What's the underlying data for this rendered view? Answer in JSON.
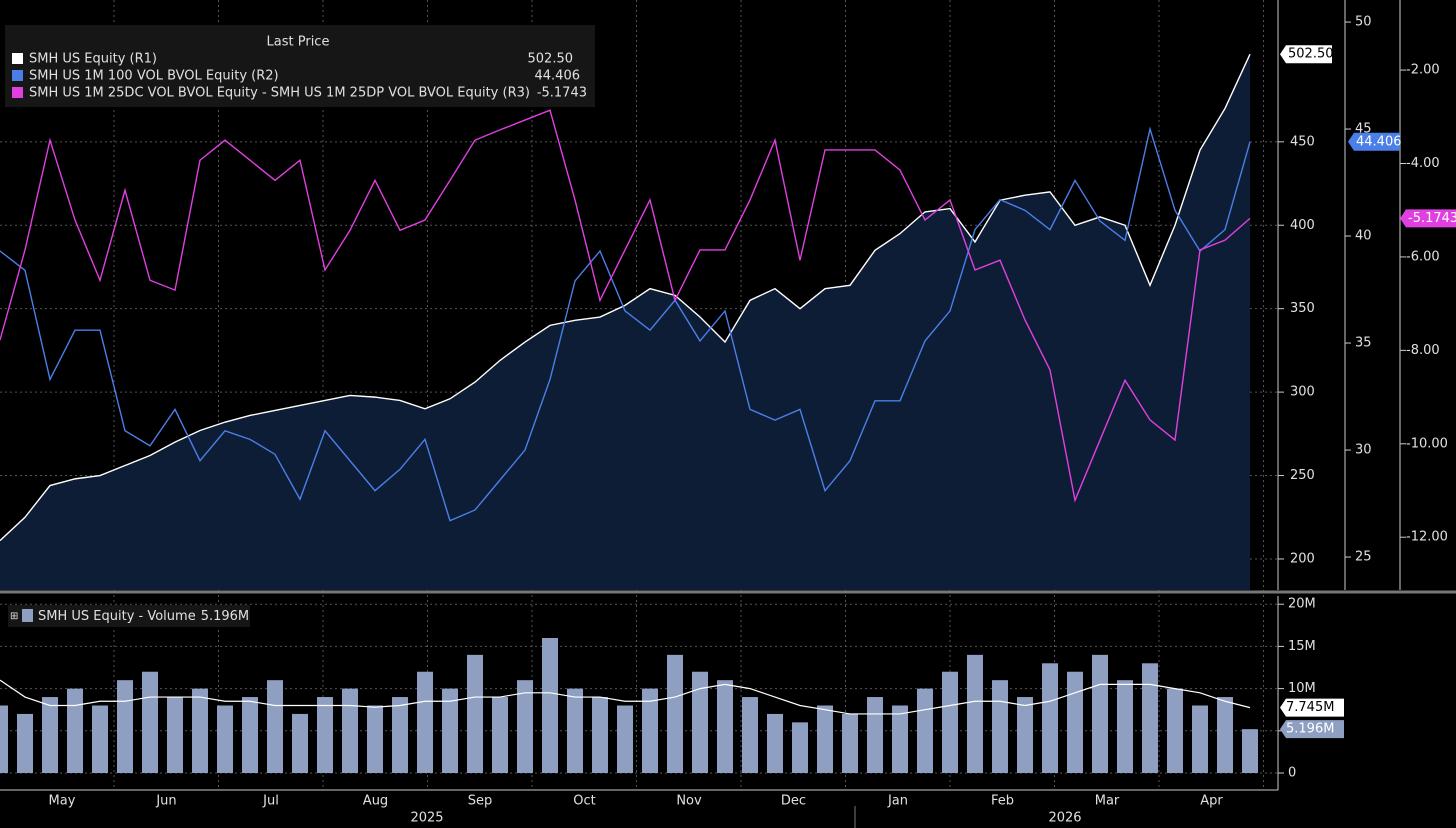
{
  "chart_data": [
    {
      "type": "line",
      "legend_title": "Last Price",
      "ylim": [
        181.4,
        535
      ],
      "yticks": [
        200,
        250,
        300,
        350,
        400,
        450
      ],
      "y2lim": [
        23.46,
        51.03
      ],
      "y2ticks": [
        25,
        30,
        35,
        40,
        45,
        50
      ],
      "y3lim": [
        -13.13,
        -0.5
      ],
      "y3ticks": [
        {
          "value": -12,
          "label": "-12.00"
        },
        {
          "value": -10,
          "label": "-10.00"
        },
        {
          "value": -8,
          "label": "-8.00"
        },
        {
          "value": -6,
          "label": "-6.00"
        },
        {
          "value": -4,
          "label": "-4.00"
        },
        {
          "value": -2,
          "label": "-2.00"
        }
      ],
      "grid": true,
      "series": [
        {
          "name": "SMH US Equity  (R1)",
          "axis": "y",
          "color": "#ffffff",
          "fill": "#0e1d36",
          "last_label": "502.50",
          "values": [
            211,
            225,
            244,
            248,
            250,
            256,
            262,
            270,
            277,
            282,
            286,
            289,
            292,
            295,
            298,
            297,
            295,
            290,
            296,
            306,
            319,
            330,
            340,
            343,
            345,
            352,
            362,
            358,
            345,
            330,
            355,
            362,
            350,
            362,
            364,
            385,
            395,
            408,
            410,
            390,
            415,
            418,
            420,
            400,
            405,
            400,
            364,
            400,
            445,
            470,
            502.5
          ]
        },
        {
          "name": "SMH US 1M 100 VOL BVOL Equity  (R2)",
          "axis": "y2",
          "color": "#4a7fe8",
          "last_label": "44.406",
          "values": [
            39.3,
            38.4,
            33.3,
            35.6,
            35.6,
            30.9,
            30.2,
            31.9,
            29.5,
            30.9,
            30.5,
            29.8,
            27.7,
            30.9,
            29.5,
            28.1,
            29.1,
            30.5,
            26.7,
            27.2,
            28.6,
            30.0,
            33.3,
            37.9,
            39.3,
            36.5,
            35.6,
            37.0,
            35.1,
            36.5,
            31.9,
            31.4,
            31.9,
            28.1,
            29.5,
            32.3,
            32.3,
            35.1,
            36.5,
            40.3,
            41.7,
            41.2,
            40.3,
            42.6,
            40.7,
            39.8,
            45.0,
            41.2,
            39.3,
            40.3,
            44.406
          ]
        },
        {
          "name": "SMH US 1M 25DC VOL BVOL Equity - SMH US 1M 25DP VOL BVOL Equity  (R3)",
          "axis": "y3",
          "color": "#e040e0",
          "last_label": "-5.1743",
          "values": [
            -7.78,
            -5.85,
            -3.5,
            -5.21,
            -6.5,
            -4.57,
            -6.5,
            -6.71,
            -3.93,
            -3.5,
            -3.93,
            -4.36,
            -3.93,
            -6.28,
            -5.43,
            -4.36,
            -5.43,
            -5.21,
            -4.36,
            -3.5,
            -3.28,
            -3.07,
            -2.86,
            -4.78,
            -6.93,
            -5.85,
            -4.78,
            -6.93,
            -5.85,
            -5.85,
            -4.78,
            -3.5,
            -6.07,
            -3.71,
            -3.71,
            -3.71,
            -4.14,
            -5.21,
            -4.78,
            -6.28,
            -6.07,
            -7.35,
            -8.42,
            -11.21,
            -9.92,
            -8.64,
            -9.49,
            -9.92,
            -5.85,
            -5.64,
            -5.1743
          ]
        }
      ]
    },
    {
      "type": "bar",
      "ylim": [
        0,
        20500000
      ],
      "yticks": [
        0,
        {
          "value": 5000000,
          "label": "5M"
        },
        {
          "value": 10000000,
          "label": "10M"
        },
        {
          "value": 15000000,
          "label": "15M"
        },
        {
          "value": 20000000,
          "label": "20M"
        }
      ],
      "series": [
        {
          "name": "SMH US Equity - Volume",
          "color": "#8e9fc2",
          "last_label": "5.196M",
          "values": [
            8000000,
            7000000,
            9000000,
            10000000,
            8000000,
            11000000,
            12000000,
            9000000,
            10000000,
            8000000,
            9000000,
            11000000,
            7000000,
            9000000,
            10000000,
            8000000,
            9000000,
            12000000,
            10000000,
            14000000,
            9000000,
            11000000,
            16000000,
            10000000,
            9000000,
            8000000,
            10000000,
            14000000,
            12000000,
            11000000,
            9000000,
            7000000,
            6000000,
            8000000,
            7000000,
            9000000,
            8000000,
            10000000,
            12000000,
            14000000,
            11000000,
            9000000,
            13000000,
            12000000,
            14000000,
            11000000,
            13000000,
            10000000,
            8000000,
            9000000,
            5196000
          ]
        },
        {
          "type": "line",
          "color": "#ffffff",
          "last_label": "7.745M",
          "values": [
            11000000,
            9000000,
            8000000,
            8000000,
            8500000,
            8500000,
            9000000,
            9000000,
            9000000,
            8500000,
            8500000,
            8000000,
            8000000,
            8000000,
            8000000,
            7800000,
            8000000,
            8500000,
            8500000,
            9000000,
            9000000,
            9500000,
            9500000,
            9000000,
            9000000,
            8500000,
            8500000,
            9000000,
            10000000,
            10500000,
            10000000,
            9000000,
            8000000,
            7500000,
            7000000,
            7000000,
            7000000,
            7500000,
            8000000,
            8500000,
            8500000,
            8000000,
            8500000,
            9500000,
            10500000,
            10500000,
            10500000,
            10000000,
            9500000,
            8500000,
            7745000
          ]
        }
      ]
    }
  ],
  "x_axis": {
    "months": [
      "May",
      "Jun",
      "Jul",
      "Aug",
      "Sep",
      "Oct",
      "Nov",
      "Dec",
      "Jan",
      "Feb",
      "Mar",
      "Apr"
    ],
    "years": [
      "2025",
      "2026"
    ]
  }
}
